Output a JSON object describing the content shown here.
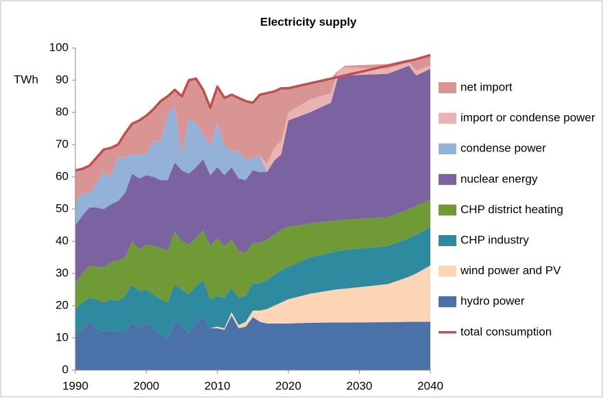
{
  "chart_data": {
    "type": "stacked_area",
    "title": "Electricity supply",
    "y_label": "TWh",
    "x": [
      1990,
      1991,
      1992,
      1993,
      1994,
      1995,
      1996,
      1997,
      1998,
      1999,
      2000,
      2001,
      2002,
      2003,
      2004,
      2005,
      2006,
      2007,
      2008,
      2009,
      2010,
      2011,
      2012,
      2013,
      2014,
      2015,
      2016,
      2017,
      2018,
      2019,
      2020,
      2023,
      2026,
      2027,
      2028,
      2034,
      2037,
      2038,
      2040
    ],
    "xlim": [
      1990,
      2040
    ],
    "xticks": [
      1990,
      2000,
      2010,
      2020,
      2030,
      2040
    ],
    "ylim": [
      0,
      100
    ],
    "yticks": [
      0,
      10,
      20,
      30,
      40,
      50,
      60,
      70,
      80,
      90,
      100
    ],
    "series": [
      {
        "name": "hydro power",
        "color": "#4a72a8",
        "values": [
          11,
          13,
          15,
          13,
          12,
          12.5,
          12,
          12,
          15,
          13,
          14.5,
          13,
          11,
          9.5,
          15,
          14,
          11.5,
          14.5,
          17,
          13,
          13,
          12.5,
          17,
          13,
          13.5,
          16.5,
          15,
          14.5,
          14.5,
          14.5,
          14.5,
          14.7,
          14.8,
          14.8,
          14.8,
          14.9,
          15,
          15,
          15
        ]
      },
      {
        "name": "wind power and PV",
        "color": "#fbd5b5",
        "values": [
          0,
          0,
          0,
          0,
          0,
          0,
          0,
          0,
          0,
          0,
          0,
          0,
          0,
          0,
          0,
          0,
          0,
          0,
          0,
          0,
          0.5,
          0.5,
          1,
          1,
          1.5,
          2,
          3.5,
          4.5,
          5.5,
          6.5,
          7.5,
          9,
          10,
          10.3,
          10.5,
          11.8,
          14,
          15,
          17.5
        ]
      },
      {
        "name": "CHP industry",
        "color": "#2e8a9e",
        "values": [
          8,
          8,
          7.5,
          9,
          9,
          9.5,
          9.5,
          11,
          11.5,
          11.5,
          10.5,
          10.5,
          11,
          11.5,
          11.5,
          11,
          12,
          11.5,
          11,
          9,
          9.5,
          9.5,
          7.5,
          8.5,
          8,
          8.5,
          8.5,
          9,
          9.5,
          10,
          10,
          11.3,
          11.7,
          11.9,
          12,
          11.8,
          12,
          12,
          12
        ]
      },
      {
        "name": "CHP district heating",
        "color": "#6f9a35",
        "values": [
          8,
          9,
          10,
          10,
          11,
          11.5,
          12.5,
          12,
          13.5,
          13,
          14,
          15,
          16,
          16,
          16.5,
          15,
          15.5,
          15,
          15.5,
          16.5,
          18,
          16,
          15,
          14.5,
          13.5,
          12.5,
          12.5,
          12.5,
          12.5,
          12.5,
          12.5,
          10.5,
          9.8,
          9.5,
          9.4,
          9,
          9,
          9,
          8.5
        ]
      },
      {
        "name": "nuclear energy",
        "color": "#7b63a1",
        "values": [
          18,
          18,
          18,
          18.5,
          18,
          18,
          18.5,
          20,
          21,
          22,
          21.5,
          21.5,
          21,
          22,
          21.5,
          22,
          22,
          22,
          22,
          22,
          22,
          22,
          22.5,
          22.5,
          22.5,
          22.5,
          22,
          21,
          23,
          23.5,
          33,
          34.5,
          36.7,
          44.5,
          44.8,
          44.5,
          44.5,
          40.5,
          40.5
        ]
      },
      {
        "name": "condense power",
        "color": "#94b1d8",
        "values": [
          7,
          7,
          4.5,
          7.5,
          11.5,
          8.5,
          13.5,
          11,
          6,
          7.5,
          6.5,
          11,
          12,
          20,
          17.5,
          5,
          17,
          13.5,
          8,
          9,
          14,
          9.5,
          5,
          8.5,
          6.5,
          4,
          5,
          0,
          0,
          0,
          0,
          0,
          0,
          0,
          0,
          0,
          0,
          0,
          0
        ]
      },
      {
        "name": "import or condense power",
        "color": "#e9b3b1",
        "values": [
          0,
          0,
          0,
          0,
          0,
          0,
          0,
          0,
          0,
          0,
          0,
          0,
          0,
          0,
          0,
          0,
          0,
          0,
          0,
          0,
          0,
          0,
          0,
          0,
          0,
          0,
          0,
          2.5,
          4,
          4,
          2.5,
          4,
          3,
          2,
          2.5,
          1.5,
          1,
          1.5,
          1
        ]
      },
      {
        "name": "net import",
        "color": "#d99594",
        "values": [
          10,
          7.5,
          8.5,
          8,
          7,
          9,
          4,
          7.5,
          9.5,
          10.5,
          12,
          10,
          12.5,
          6,
          5,
          18,
          12,
          14,
          13.5,
          12,
          11,
          14.5,
          17.5,
          16.5,
          18,
          17,
          19,
          22,
          17.5,
          16.5,
          7.5,
          5,
          4.5,
          0,
          0.5,
          1.5,
          1,
          3.5,
          3
        ]
      }
    ],
    "line": {
      "name": "total consumption",
      "color": "#c0504d",
      "values": [
        62,
        62.5,
        63.5,
        66,
        68.5,
        69,
        70,
        73.5,
        76.5,
        77.5,
        79,
        81,
        83.5,
        85,
        87,
        85,
        90,
        90.5,
        87,
        81.5,
        88,
        84.5,
        85.5,
        84.5,
        83.5,
        83,
        85.5,
        86,
        86.5,
        87.5,
        87.5,
        89,
        90.5,
        91,
        91.5,
        94.5,
        96,
        96.5,
        97.8
      ]
    }
  }
}
